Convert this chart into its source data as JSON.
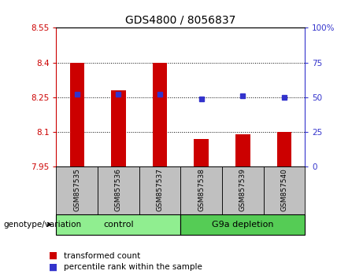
{
  "title": "GDS4800 / 8056837",
  "samples": [
    "GSM857535",
    "GSM857536",
    "GSM857537",
    "GSM857538",
    "GSM857539",
    "GSM857540"
  ],
  "red_values": [
    8.4,
    8.28,
    8.4,
    8.07,
    8.09,
    8.1
  ],
  "blue_values": [
    52,
    52,
    52,
    49,
    51,
    50
  ],
  "ylim_left": [
    7.95,
    8.55
  ],
  "ylim_right": [
    0,
    100
  ],
  "yticks_left": [
    7.95,
    8.1,
    8.25,
    8.4,
    8.55
  ],
  "yticks_right": [
    0,
    25,
    50,
    75,
    100
  ],
  "ytick_labels_left": [
    "7.95",
    "8.1",
    "8.25",
    "8.4",
    "8.55"
  ],
  "ytick_labels_right": [
    "0",
    "25",
    "50",
    "75",
    "100%"
  ],
  "groups": [
    {
      "label": "control",
      "indices": [
        0,
        1,
        2
      ],
      "color": "#90EE90"
    },
    {
      "label": "G9a depletion",
      "indices": [
        3,
        4,
        5
      ],
      "color": "#55CC55"
    }
  ],
  "genotype_label": "genotype/variation",
  "legend_red": "transformed count",
  "legend_blue": "percentile rank within the sample",
  "red_color": "#CC0000",
  "blue_color": "#3333CC",
  "bar_width": 0.35,
  "dotted_grid_values": [
    8.1,
    8.25,
    8.4
  ],
  "xticklabel_bg": "#C0C0C0",
  "title_fontsize": 10
}
